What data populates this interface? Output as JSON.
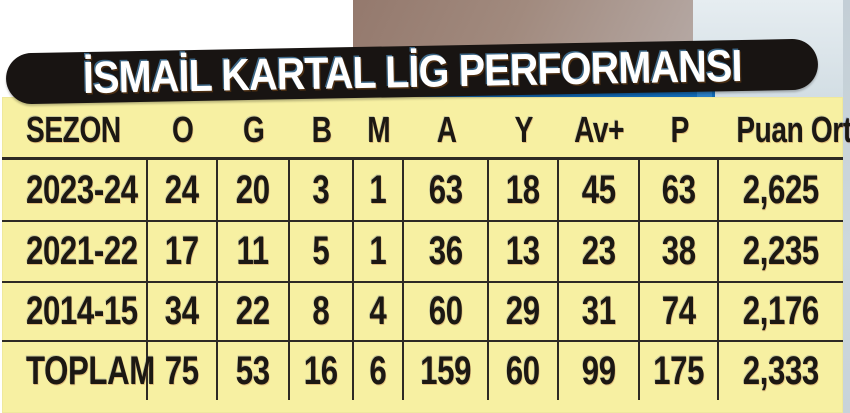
{
  "header": {
    "title": "İSMAİL KARTAL LİG PERFORMANSI"
  },
  "table": {
    "columns": [
      "SEZON",
      "O",
      "G",
      "B",
      "M",
      "A",
      "Y",
      "Av+",
      "P",
      "Puan Ort."
    ],
    "rows": [
      [
        "2023-24",
        "24",
        "20",
        "3",
        "1",
        "63",
        "18",
        "45",
        "63",
        "2,625"
      ],
      [
        "2021-22",
        "17",
        "11",
        "5",
        "1",
        "36",
        "13",
        "23",
        "38",
        "2,235"
      ],
      [
        "2014-15",
        "34",
        "22",
        "8",
        "4",
        "60",
        "29",
        "31",
        "74",
        "2,176"
      ],
      [
        "TOPLAM",
        "75",
        "53",
        "16",
        "6",
        "159",
        "60",
        "99",
        "175",
        "2,333"
      ]
    ]
  },
  "chart_data": {
    "type": "table",
    "title": "İSMAİL KARTAL LİG PERFORMANSI",
    "columns": [
      "SEZON",
      "O",
      "G",
      "B",
      "M",
      "A",
      "Y",
      "Av+",
      "P",
      "Puan Ort."
    ],
    "rows": [
      {
        "sezon": "2023-24",
        "O": 24,
        "G": 20,
        "B": 3,
        "M": 1,
        "A": 63,
        "Y": 18,
        "Av+": 45,
        "P": 63,
        "puan_ort": "2,625"
      },
      {
        "sezon": "2021-22",
        "O": 17,
        "G": 11,
        "B": 5,
        "M": 1,
        "A": 36,
        "Y": 13,
        "Av+": 23,
        "P": 38,
        "puan_ort": "2,235"
      },
      {
        "sezon": "2014-15",
        "O": 34,
        "G": 22,
        "B": 8,
        "M": 4,
        "A": 60,
        "Y": 29,
        "Av+": 31,
        "P": 74,
        "puan_ort": "2,176"
      },
      {
        "sezon": "TOPLAM",
        "O": 75,
        "G": 53,
        "B": 16,
        "M": 6,
        "A": 159,
        "Y": 60,
        "Av+": 99,
        "P": 175,
        "puan_ort": "2,333"
      }
    ]
  },
  "colors": {
    "table_bg": "#f7f0a2",
    "grid_line": "#2e2a24",
    "text_ink": "#1c1813",
    "banner_bg": "#181412",
    "banner_text": "#ffffff",
    "photo_blue_band": "#1269b4",
    "photo_brown": "#9b8276",
    "photo_light_blue": "#dfe8ed"
  }
}
